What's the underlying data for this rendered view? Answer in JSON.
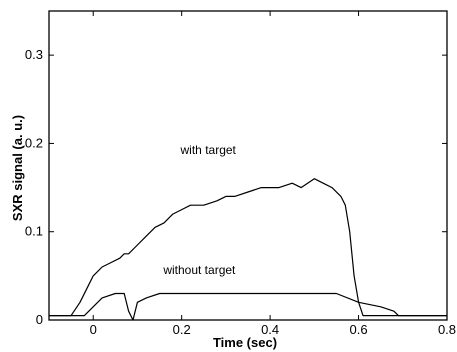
{
  "chart_data": {
    "type": "line",
    "title": "",
    "xlabel": "Time (sec)",
    "ylabel": "SXR signal (a. u.)",
    "xlim": [
      -0.1,
      0.8
    ],
    "ylim": [
      0,
      0.35
    ],
    "x_ticks": [
      0,
      0.2,
      0.4,
      0.6,
      0.8
    ],
    "x_tick_labels": [
      "0",
      "0.2",
      "0.4",
      "0.6",
      "0.8"
    ],
    "y_ticks": [
      0,
      0.1,
      0.2,
      0.3
    ],
    "y_tick_labels": [
      "0",
      "0.1",
      "0.2",
      "0.3"
    ],
    "grid": false,
    "line_color": "#000000",
    "series": [
      {
        "x": [
          -0.1,
          -0.05,
          -0.03,
          -0.01,
          0.0,
          0.02,
          0.04,
          0.06,
          0.07,
          0.08,
          0.1,
          0.12,
          0.14,
          0.16,
          0.18,
          0.2,
          0.22,
          0.25,
          0.28,
          0.3,
          0.32,
          0.35,
          0.38,
          0.4,
          0.42,
          0.45,
          0.47,
          0.5,
          0.52,
          0.54,
          0.56,
          0.57,
          0.58,
          0.59,
          0.6,
          0.61,
          0.62,
          0.65,
          0.8
        ],
        "y": [
          0.005,
          0.005,
          0.02,
          0.04,
          0.05,
          0.06,
          0.065,
          0.07,
          0.075,
          0.075,
          0.085,
          0.095,
          0.105,
          0.11,
          0.12,
          0.125,
          0.13,
          0.13,
          0.135,
          0.14,
          0.14,
          0.145,
          0.15,
          0.15,
          0.15,
          0.155,
          0.15,
          0.16,
          0.155,
          0.15,
          0.14,
          0.13,
          0.1,
          0.05,
          0.02,
          0.005,
          0.005,
          0.005,
          0.005
        ]
      },
      {
        "x": [
          -0.1,
          -0.02,
          -0.01,
          0.0,
          0.02,
          0.05,
          0.07,
          0.08,
          0.09,
          0.1,
          0.12,
          0.15,
          0.2,
          0.3,
          0.4,
          0.5,
          0.55,
          0.6,
          0.65,
          0.68,
          0.69,
          0.7,
          0.8
        ],
        "y": [
          0.005,
          0.005,
          0.01,
          0.015,
          0.025,
          0.03,
          0.03,
          0.01,
          0.0,
          0.02,
          0.025,
          0.03,
          0.03,
          0.03,
          0.03,
          0.03,
          0.03,
          0.02,
          0.015,
          0.01,
          0.005,
          0.005,
          0.005
        ]
      }
    ],
    "annotations": [
      {
        "text": "with target",
        "x": 0.26,
        "y": 0.188
      },
      {
        "text": "without target",
        "x": 0.24,
        "y": 0.052
      }
    ]
  }
}
